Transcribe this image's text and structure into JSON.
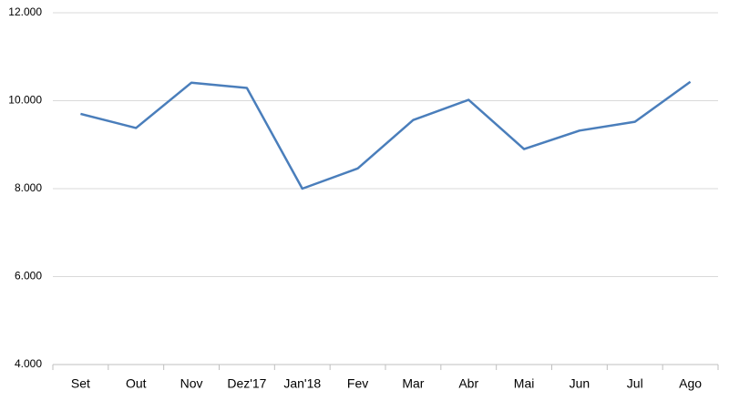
{
  "chart_data": {
    "type": "line",
    "categories": [
      "Set",
      "Out",
      "Nov",
      "Dez'17",
      "Jan'18",
      "Fev",
      "Mar",
      "Abr",
      "Mai",
      "Jun",
      "Jul",
      "Ago"
    ],
    "values": [
      9700,
      9380,
      10410,
      10290,
      8000,
      8460,
      9560,
      10020,
      8900,
      9320,
      9520,
      10430
    ],
    "color": "#4a7ebb",
    "ylim": [
      4000,
      12000
    ],
    "yticks": [
      {
        "value": 4000,
        "label": "4.000"
      },
      {
        "value": 6000,
        "label": "6.000"
      },
      {
        "value": 8000,
        "label": "8.000"
      },
      {
        "value": 10000,
        "label": "10.000"
      },
      {
        "value": 12000,
        "label": "12.000"
      }
    ],
    "grid": true
  }
}
